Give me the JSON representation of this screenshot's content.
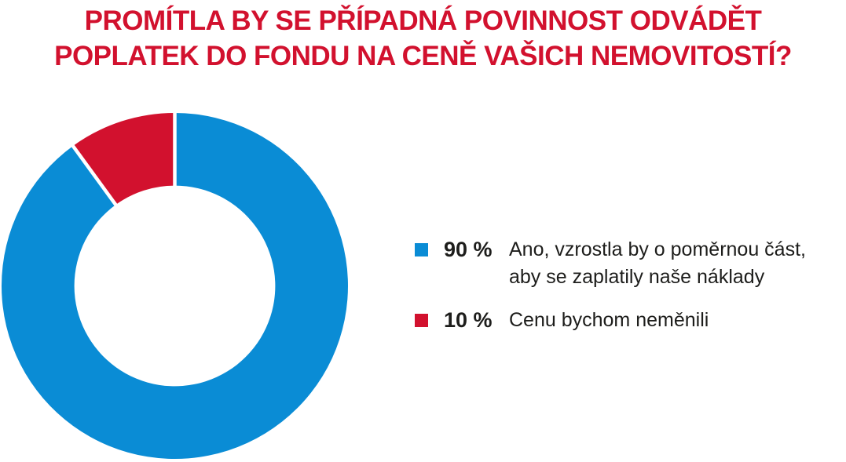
{
  "title": {
    "text": "PROMÍTLA BY SE PŘÍPADNÁ POVINNOST ODVÁDĚT\nPOPLATEK DO FONDU NA CENĚ VAŠICH NEMOVITOSTÍ?",
    "color": "#d2112e"
  },
  "chart_data": {
    "type": "pie",
    "subtype": "donut",
    "title": "PROMÍTLA BY SE PŘÍPADNÁ POVINNOST ODVÁDĚT POPLATEK DO FONDU NA CENĚ VAŠICH NEMOVITOSTÍ?",
    "categories": [
      "Ano, vzrostla by o poměrnou část, aby se zaplatily naše náklady",
      "Cenu bychom neměnili"
    ],
    "values": [
      90,
      10
    ],
    "colors": [
      "#0a8cd5",
      "#d2112e"
    ],
    "start_angle_deg": 0,
    "direction": "clockwise",
    "donut_hole_ratio": 0.58,
    "slice_gap_color": "#ffffff",
    "legend_position": "right",
    "legend": [
      {
        "color": "#0a8cd5",
        "percent": "90 %",
        "label": "Ano, vzrostla by o poměrnou část,\naby se zaplatily naše náklady"
      },
      {
        "color": "#d2112e",
        "percent": "10 %",
        "label": "Cenu bychom neměnili"
      }
    ]
  }
}
